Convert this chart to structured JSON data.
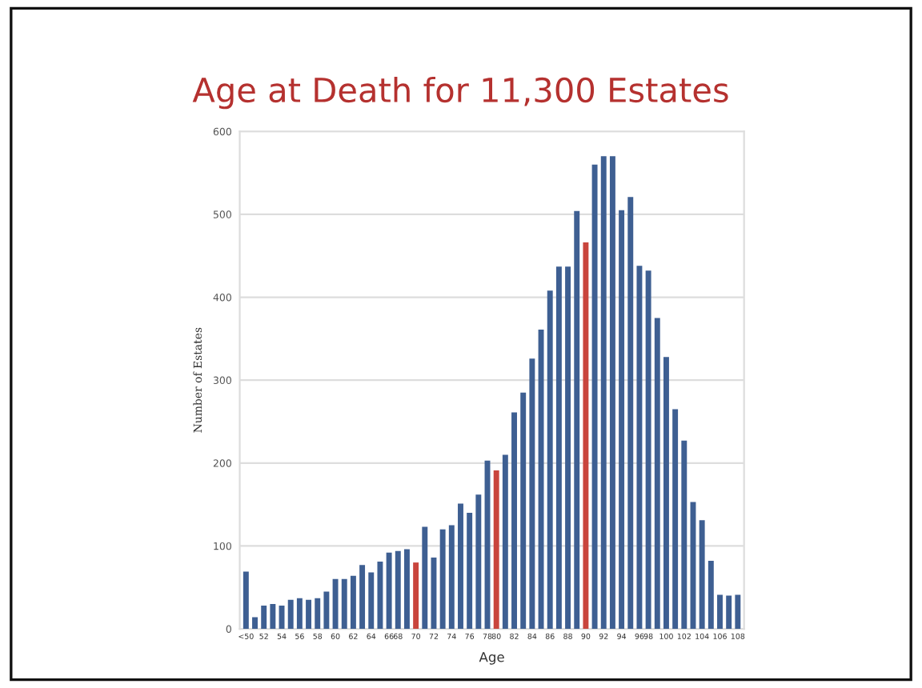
{
  "chart_data": {
    "type": "bar",
    "title": "Age at Death for 11,300 Estates",
    "xlabel": "Age",
    "ylabel": "Number of Estates",
    "categories": [
      "<50",
      null,
      "52",
      null,
      "54",
      null,
      "56",
      null,
      "58",
      null,
      "60",
      null,
      "62",
      null,
      "64",
      null,
      "66",
      "68",
      null,
      "70",
      null,
      "72",
      null,
      "74",
      null,
      "76",
      null,
      "78",
      "80",
      null,
      "82",
      null,
      "84",
      null,
      "86",
      null,
      "88",
      null,
      "90",
      null,
      "92",
      null,
      "94",
      null,
      "96",
      "98",
      null,
      "100",
      null,
      "102",
      null,
      "104",
      null,
      "106",
      null,
      "108"
    ],
    "values": [
      69,
      14,
      28,
      30,
      28,
      35,
      37,
      35,
      37,
      45,
      60,
      60,
      64,
      77,
      68,
      81,
      92,
      94,
      96,
      80,
      123,
      86,
      120,
      125,
      151,
      140,
      162,
      203,
      191,
      210,
      261,
      285,
      326,
      361,
      408,
      437,
      437,
      504,
      466,
      560,
      570,
      570,
      505,
      521,
      438,
      432,
      375,
      328,
      265,
      227,
      153,
      131,
      82,
      41,
      40,
      41
    ],
    "colors": [
      "#3e5f92",
      "#3e5f92",
      "#3e5f92",
      "#3e5f92",
      "#3e5f92",
      "#3e5f92",
      "#3e5f92",
      "#3e5f92",
      "#3e5f92",
      "#3e5f92",
      "#3e5f92",
      "#3e5f92",
      "#3e5f92",
      "#3e5f92",
      "#3e5f92",
      "#3e5f92",
      "#3e5f92",
      "#3e5f92",
      "#3e5f92",
      "#c9453d",
      "#3e5f92",
      "#3e5f92",
      "#3e5f92",
      "#3e5f92",
      "#3e5f92",
      "#3e5f92",
      "#3e5f92",
      "#3e5f92",
      "#c9453d",
      "#3e5f92",
      "#3e5f92",
      "#3e5f92",
      "#3e5f92",
      "#3e5f92",
      "#3e5f92",
      "#3e5f92",
      "#3e5f92",
      "#3e5f92",
      "#c9453d",
      "#3e5f92",
      "#3e5f92",
      "#3e5f92",
      "#3e5f92",
      "#3e5f92",
      "#3e5f92",
      "#3e5f92",
      "#3e5f92",
      "#3e5f92",
      "#3e5f92",
      "#3e5f92",
      "#3e5f92",
      "#3e5f92",
      "#3e5f92",
      "#3e5f92",
      "#3e5f92",
      "#3e5f92"
    ],
    "ylim": [
      0,
      600
    ],
    "yticks": [
      0,
      100,
      200,
      300,
      400,
      500,
      600
    ],
    "grid": "y"
  }
}
